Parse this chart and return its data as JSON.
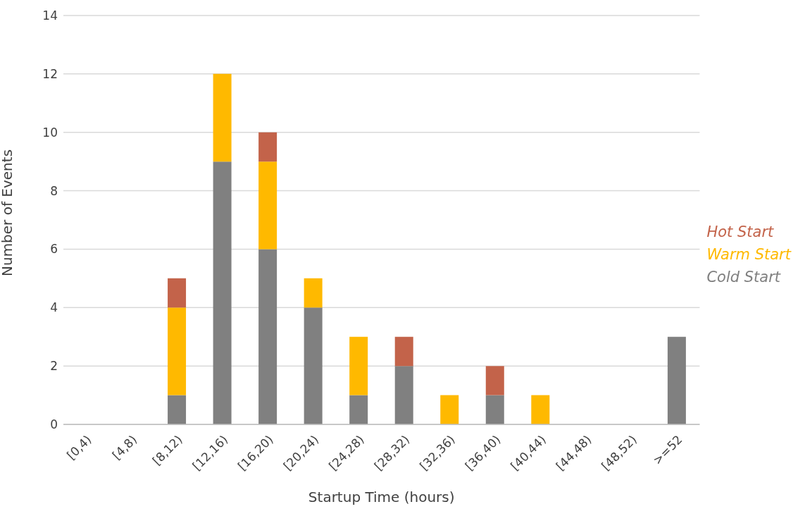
{
  "chart_data": {
    "type": "bar",
    "stacked": true,
    "xlabel": "Startup Time (hours)",
    "ylabel": "Number of Events",
    "categories": [
      "[0,4)",
      "[4,8)",
      "[8,12)",
      "[12,16)",
      "[16,20)",
      "[20,24)",
      "[24,28)",
      "[28,32)",
      "[32,36)",
      "[36,40)",
      "[40,44)",
      "[44,48)",
      "[48,52)",
      ">=52"
    ],
    "series": [
      {
        "name": "Cold Start",
        "color": "#808080",
        "values": [
          0,
          0,
          1,
          9,
          6,
          4,
          1,
          2,
          0,
          1,
          0,
          0,
          0,
          3
        ]
      },
      {
        "name": "Warm Start",
        "color": "#ffb900",
        "values": [
          0,
          0,
          3,
          3,
          3,
          1,
          2,
          0,
          1,
          0,
          1,
          0,
          0,
          0
        ]
      },
      {
        "name": "Hot Start",
        "color": "#c3634a",
        "values": [
          0,
          0,
          1,
          0,
          1,
          0,
          0,
          1,
          0,
          1,
          0,
          0,
          0,
          0
        ]
      }
    ],
    "ylim": [
      0,
      14
    ],
    "yticks": [
      0,
      2,
      4,
      6,
      8,
      10,
      12,
      14
    ],
    "grid": "y",
    "legend": "right"
  }
}
